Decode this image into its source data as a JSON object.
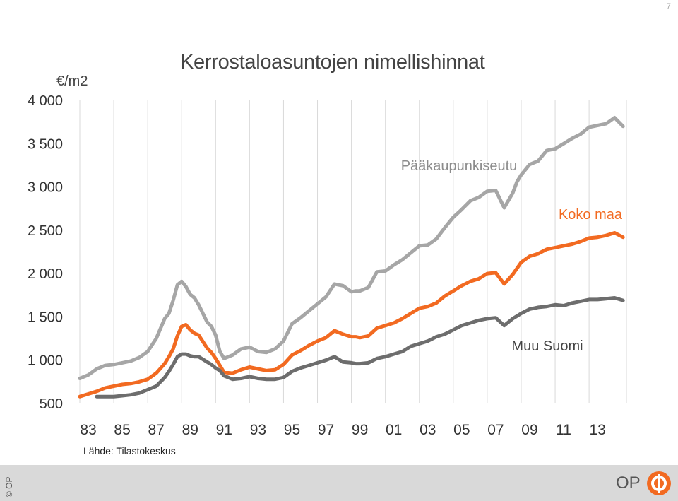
{
  "page_number": "7",
  "title": "Kerrostaloasuntojen nimellishinnat",
  "unit": "€/m2",
  "source": "Lähde: Tilastokeskus",
  "footer": {
    "copyright": "© OP",
    "logo_text": "OP"
  },
  "colors": {
    "helsinki": "#a6a6a6",
    "whole": "#f26a21",
    "rest": "#6d6d6d",
    "grid": "#d9d9d9",
    "accent": "#f26a21"
  },
  "chart_data": {
    "type": "line",
    "ylim": [
      500,
      4000
    ],
    "xlim": [
      1983,
      2015.2
    ],
    "yticks": [
      500,
      1000,
      1500,
      2000,
      2500,
      3000,
      3500,
      4000
    ],
    "ytick_labels": [
      "500",
      "1 000",
      "1 500",
      "2 000",
      "2 500",
      "3 000",
      "3 500",
      "4 000"
    ],
    "xtick_labels": [
      "83",
      "85",
      "87",
      "89",
      "91",
      "93",
      "95",
      "97",
      "99",
      "01",
      "03",
      "05",
      "07",
      "09",
      "11",
      "13"
    ],
    "grid": "vertical",
    "series": [
      {
        "name": "Pääkaupunkiseutu",
        "color": "#a6a6a6",
        "x": [
          1983.0,
          1983.5,
          1984.0,
          1984.5,
          1985.0,
          1985.5,
          1986.0,
          1986.5,
          1987.0,
          1987.5,
          1988.0,
          1988.25,
          1988.5,
          1988.75,
          1989.0,
          1989.25,
          1989.5,
          1989.75,
          1990.0,
          1990.5,
          1990.75,
          1991.0,
          1991.25,
          1991.5,
          1992.0,
          1992.5,
          1993.0,
          1993.5,
          1994.0,
          1994.5,
          1995.0,
          1995.5,
          1996.0,
          1996.5,
          1997.0,
          1997.5,
          1998.0,
          1998.5,
          1999.0,
          1999.25,
          1999.5,
          2000.0,
          2000.5,
          2001.0,
          2001.5,
          2002.0,
          2002.5,
          2003.0,
          2003.5,
          2004.0,
          2004.5,
          2005.0,
          2005.5,
          2006.0,
          2006.5,
          2007.0,
          2007.5,
          2008.0,
          2008.5,
          2008.75,
          2009.0,
          2009.5,
          2010.0,
          2010.5,
          2011.0,
          2011.5,
          2012.0,
          2012.5,
          2013.0,
          2013.5,
          2014.0,
          2014.5,
          2015.0
        ],
        "values": [
          790,
          830,
          900,
          940,
          950,
          970,
          990,
          1030,
          1100,
          1250,
          1480,
          1540,
          1690,
          1870,
          1910,
          1850,
          1760,
          1720,
          1640,
          1440,
          1390,
          1290,
          1100,
          1020,
          1060,
          1130,
          1150,
          1100,
          1090,
          1130,
          1220,
          1420,
          1490,
          1570,
          1650,
          1730,
          1880,
          1860,
          1790,
          1800,
          1800,
          1840,
          2020,
          2030,
          2100,
          2160,
          2240,
          2320,
          2330,
          2400,
          2530,
          2650,
          2740,
          2840,
          2880,
          2950,
          2960,
          2760,
          2930,
          3060,
          3140,
          3260,
          3300,
          3420,
          3440,
          3500,
          3560,
          3610,
          3690,
          3710,
          3730,
          3800,
          3700
        ]
      },
      {
        "name": "Koko maa",
        "color": "#f26a21",
        "x": [
          1983.0,
          1983.5,
          1984.0,
          1984.5,
          1985.0,
          1985.5,
          1986.0,
          1986.5,
          1987.0,
          1987.5,
          1988.0,
          1988.25,
          1988.5,
          1988.75,
          1989.0,
          1989.25,
          1989.5,
          1989.75,
          1990.0,
          1990.5,
          1990.75,
          1991.0,
          1991.25,
          1991.5,
          1992.0,
          1992.5,
          1993.0,
          1993.5,
          1994.0,
          1994.5,
          1995.0,
          1995.5,
          1996.0,
          1996.5,
          1997.0,
          1997.5,
          1998.0,
          1998.5,
          1999.0,
          1999.25,
          1999.5,
          2000.0,
          2000.5,
          2001.0,
          2001.5,
          2002.0,
          2002.5,
          2003.0,
          2003.5,
          2004.0,
          2004.5,
          2005.0,
          2005.5,
          2006.0,
          2006.5,
          2007.0,
          2007.5,
          2008.0,
          2008.5,
          2008.75,
          2009.0,
          2009.5,
          2010.0,
          2010.5,
          2011.0,
          2011.5,
          2012.0,
          2012.5,
          2013.0,
          2013.5,
          2014.0,
          2014.5,
          2015.0
        ],
        "values": [
          580,
          610,
          640,
          680,
          700,
          720,
          730,
          750,
          780,
          850,
          960,
          1040,
          1130,
          1280,
          1390,
          1410,
          1350,
          1310,
          1290,
          1140,
          1090,
          1020,
          940,
          860,
          850,
          890,
          920,
          900,
          880,
          890,
          950,
          1060,
          1110,
          1170,
          1220,
          1260,
          1340,
          1300,
          1270,
          1270,
          1260,
          1280,
          1370,
          1400,
          1430,
          1480,
          1540,
          1600,
          1620,
          1660,
          1740,
          1800,
          1860,
          1910,
          1940,
          2000,
          2010,
          1880,
          1990,
          2060,
          2130,
          2200,
          2230,
          2280,
          2300,
          2320,
          2340,
          2370,
          2410,
          2420,
          2440,
          2470,
          2420
        ]
      },
      {
        "name": "Muu Suomi",
        "color": "#6d6d6d",
        "x": [
          1984.0,
          1984.5,
          1985.0,
          1985.5,
          1986.0,
          1986.5,
          1987.0,
          1987.5,
          1988.0,
          1988.25,
          1988.5,
          1988.75,
          1989.0,
          1989.25,
          1989.5,
          1989.75,
          1990.0,
          1990.5,
          1990.75,
          1991.0,
          1991.25,
          1991.5,
          1992.0,
          1992.5,
          1993.0,
          1993.5,
          1994.0,
          1994.5,
          1995.0,
          1995.5,
          1996.0,
          1996.5,
          1997.0,
          1997.5,
          1998.0,
          1998.5,
          1999.0,
          1999.25,
          1999.5,
          2000.0,
          2000.5,
          2001.0,
          2001.5,
          2002.0,
          2002.5,
          2003.0,
          2003.5,
          2004.0,
          2004.5,
          2005.0,
          2005.5,
          2006.0,
          2006.5,
          2007.0,
          2007.5,
          2008.0,
          2008.5,
          2008.75,
          2009.0,
          2009.5,
          2010.0,
          2010.5,
          2011.0,
          2011.5,
          2012.0,
          2012.5,
          2013.0,
          2013.5,
          2014.0,
          2014.5,
          2015.0
        ],
        "values": [
          580,
          580,
          580,
          590,
          600,
          620,
          660,
          700,
          800,
          870,
          950,
          1040,
          1070,
          1070,
          1050,
          1040,
          1040,
          980,
          950,
          910,
          880,
          820,
          780,
          790,
          810,
          790,
          780,
          780,
          800,
          870,
          910,
          940,
          970,
          1000,
          1040,
          980,
          970,
          960,
          960,
          970,
          1020,
          1040,
          1070,
          1100,
          1160,
          1190,
          1220,
          1270,
          1300,
          1350,
          1400,
          1430,
          1460,
          1480,
          1490,
          1400,
          1480,
          1510,
          1540,
          1590,
          1610,
          1620,
          1640,
          1630,
          1660,
          1680,
          1700,
          1700,
          1710,
          1720,
          1690
        ]
      }
    ],
    "annotations": [
      "Pääkaupunkiseutu",
      "Koko maa",
      "Muu Suomi"
    ]
  }
}
